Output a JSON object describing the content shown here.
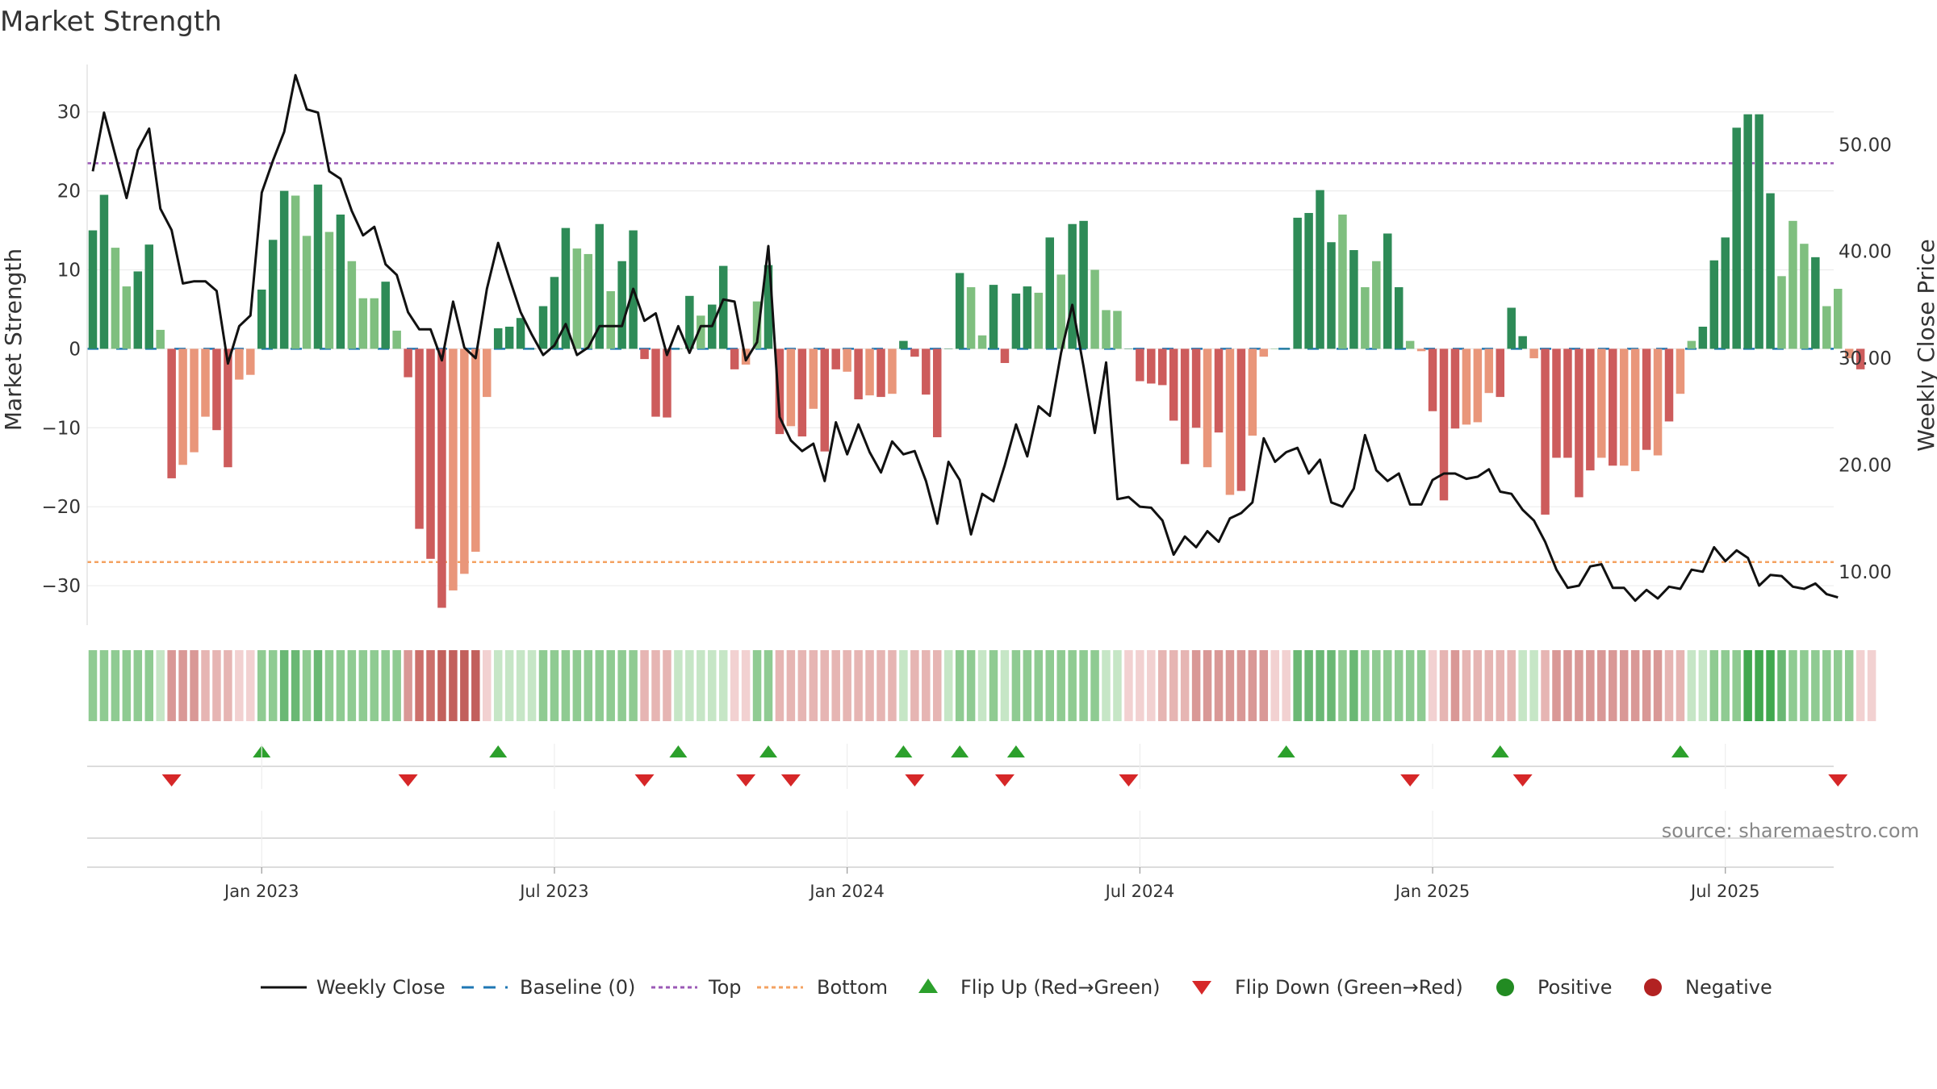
{
  "chart_data": {
    "type": "bar+line",
    "title": "Market Strength",
    "ylabel_left": "Market Strength",
    "ylabel_right": "Weekly Close Price",
    "ylim_left": [
      -35,
      36
    ],
    "ylim_right": [
      5,
      57.5
    ],
    "yticks_left": [
      30,
      20,
      10,
      0,
      -10,
      -20,
      -30
    ],
    "ytick_labels_left": [
      "30",
      "20",
      "10",
      "0",
      "−10",
      "−20",
      "−30"
    ],
    "yticks_right": [
      50,
      40,
      30,
      20,
      10
    ],
    "ytick_labels_right": [
      "50.00",
      "40.00",
      "30.00",
      "20.00",
      "10.00"
    ],
    "top_line": 23.5,
    "bottom_line": -27,
    "xticks": [
      "Jan 2023",
      "Jul 2023",
      "Jan 2024",
      "Jul 2024",
      "Jan 2025",
      "Jul 2025"
    ],
    "xtick_week_index": [
      15,
      41,
      67,
      93,
      119,
      145
    ],
    "strength": [
      15,
      19.5,
      12.8,
      7.9,
      9.8,
      13.2,
      2.4,
      -16.4,
      -14.7,
      -13.1,
      -8.6,
      -10.3,
      -15,
      -3.9,
      -3.3,
      7.5,
      13.8,
      20,
      19.4,
      14.3,
      20.8,
      14.8,
      17,
      11.1,
      6.4,
      6.4,
      8.5,
      2.3,
      -3.6,
      -22.8,
      -26.6,
      -32.8,
      -30.6,
      -28.5,
      -25.7,
      -6.1,
      2.6,
      2.8,
      3.9,
      0,
      5.4,
      9.1,
      15.3,
      12.7,
      12,
      15.8,
      7.3,
      11.1,
      15,
      -1.3,
      -8.6,
      -8.7,
      0,
      6.7,
      4.2,
      5.6,
      10.5,
      -2.6,
      -2,
      6,
      10.6,
      -10.8,
      -9.8,
      -11.1,
      -7.6,
      -13,
      -2.6,
      -2.9,
      -6.4,
      -5.9,
      -6.1,
      -5.7,
      1,
      -1,
      -5.8,
      -11.2,
      0,
      9.6,
      7.8,
      1.7,
      8.1,
      -1.8,
      7,
      7.9,
      7.1,
      14.1,
      9.4,
      15.8,
      16.2,
      10,
      4.9,
      4.8,
      0,
      -4.1,
      -4.4,
      -4.6,
      -9.1,
      -14.6,
      -10,
      -15,
      -10.6,
      -18.5,
      -18,
      -11,
      -1,
      0,
      0,
      16.6,
      17.2,
      20.1,
      13.5,
      17,
      12.5,
      7.8,
      11.1,
      14.6,
      7.8,
      1,
      -0.3,
      -7.9,
      -19.2,
      -10.1,
      -9.6,
      -9.3,
      -5.6,
      -6.1,
      5.2,
      1.6,
      -1.2,
      -21,
      -13.8,
      -13.8,
      -18.8,
      -15.4,
      -13.8,
      -14.8,
      -14.8,
      -15.5,
      -12.8,
      -13.5,
      -9.2,
      -5.7,
      1,
      2.8,
      11.2,
      14.1,
      28,
      29.7,
      29.7,
      19.7,
      9.2,
      16.2,
      13.3,
      11.6,
      5.4,
      7.6,
      -1.2,
      -2.6
    ],
    "strength_shade": [
      "d",
      "d",
      "l",
      "l",
      "d",
      "d",
      "l",
      "d",
      "l",
      "l",
      "l",
      "d",
      "d",
      "l",
      "l",
      "d",
      "d",
      "d",
      "l",
      "l",
      "d",
      "l",
      "d",
      "l",
      "l",
      "l",
      "d",
      "l",
      "d",
      "d",
      "d",
      "d",
      "l",
      "l",
      "l",
      "l",
      "d",
      "d",
      "d",
      "d",
      "d",
      "d",
      "d",
      "l",
      "l",
      "d",
      "l",
      "d",
      "d",
      "d",
      "d",
      "d",
      "d",
      "d",
      "l",
      "d",
      "d",
      "d",
      "l",
      "l",
      "d",
      "d",
      "l",
      "d",
      "l",
      "d",
      "d",
      "l",
      "d",
      "l",
      "d",
      "l",
      "d",
      "d",
      "d",
      "d",
      "d",
      "d",
      "l",
      "l",
      "d",
      "d",
      "d",
      "d",
      "l",
      "d",
      "l",
      "d",
      "d",
      "l",
      "l",
      "l",
      "d",
      "d",
      "d",
      "d",
      "d",
      "d",
      "d",
      "l",
      "d",
      "l",
      "d",
      "l",
      "l",
      "l",
      "d",
      "d",
      "d",
      "d",
      "d",
      "l",
      "d",
      "l",
      "l",
      "d",
      "d",
      "l",
      "l",
      "d",
      "d",
      "d",
      "l",
      "l",
      "l",
      "d",
      "d",
      "d",
      "l",
      "d",
      "d",
      "d",
      "d",
      "d",
      "l",
      "d",
      "l",
      "l",
      "d",
      "l",
      "d",
      "l",
      "l",
      "d",
      "d",
      "d",
      "d",
      "d",
      "d",
      "d",
      "l",
      "l",
      "l",
      "d",
      "l",
      "l",
      "l",
      "d",
      "d",
      "d"
    ],
    "weekly_close": [
      47.5,
      53,
      49,
      45,
      49.5,
      51.5,
      44,
      42,
      37,
      37.2,
      37.2,
      36.3,
      29.5,
      33,
      34,
      45.5,
      48.5,
      51.2,
      56.5,
      53.3,
      53,
      47.5,
      46.8,
      43.8,
      41.5,
      42.3,
      38.8,
      37.8,
      34.3,
      32.7,
      32.7,
      29.8,
      35.3,
      31,
      30,
      36.5,
      40.8,
      37.5,
      34.3,
      32.2,
      30.3,
      31.2,
      33.2,
      30.3,
      31,
      33,
      33,
      33,
      36.5,
      33.5,
      34.2,
      30.3,
      33,
      30.5,
      33,
      33,
      35.5,
      35.3,
      29.8,
      31.5,
      40.5,
      24.5,
      22.3,
      21.3,
      22,
      18.5,
      24,
      21,
      23.8,
      21.2,
      19.3,
      22.2,
      21,
      21.3,
      18.5,
      14.5,
      20.3,
      18.6,
      13.5,
      17.3,
      16.6,
      20,
      23.8,
      20.8,
      25.5,
      24.6,
      30.5,
      35,
      29.2,
      23,
      29.6,
      16.8,
      17,
      16.1,
      16,
      14.8,
      11.6,
      13.3,
      12.3,
      13.8,
      12.8,
      15,
      15.5,
      16.5,
      22.5,
      20.3,
      21.2,
      21.6,
      19.2,
      20.5,
      16.5,
      16.1,
      17.8,
      22.8,
      19.5,
      18.5,
      19.2,
      16.3,
      16.3,
      18.6,
      19.2,
      19.2,
      18.7,
      18.9,
      19.6,
      17.5,
      17.3,
      15.8,
      14.8,
      12.8,
      10.2,
      8.5,
      8.7,
      10.5,
      10.7,
      8.5,
      8.5,
      7.3,
      8.3,
      7.5,
      8.6,
      8.4,
      10.2,
      10.0,
      12.3,
      11.0,
      12.0,
      11.3,
      8.7,
      9.7,
      9.6,
      8.6,
      8.4,
      8.9,
      7.9,
      7.6
    ],
    "heat_strip": [
      2,
      2,
      2,
      2,
      2,
      2,
      1,
      -3,
      -3,
      -3,
      -2,
      -2,
      -2,
      -1,
      -1,
      2,
      2,
      3,
      3,
      2,
      3,
      2,
      2,
      2,
      2,
      2,
      2,
      2,
      -3,
      -4,
      -4,
      -5,
      -5,
      -5,
      -5,
      -1,
      1,
      1,
      1,
      1,
      2,
      2,
      2,
      2,
      2,
      2,
      2,
      2,
      2,
      -2,
      -2,
      -2,
      1,
      1,
      1,
      1,
      1,
      -1,
      -1,
      2,
      2,
      -2,
      -2,
      -2,
      -2,
      -2,
      -2,
      -2,
      -2,
      -2,
      -2,
      -2,
      1,
      -2,
      -2,
      -2,
      1,
      2,
      2,
      1,
      2,
      1,
      2,
      2,
      2,
      2,
      2,
      2,
      2,
      2,
      1,
      1,
      -1,
      -1,
      -1,
      -2,
      -2,
      -2,
      -3,
      -3,
      -3,
      -3,
      -3,
      -3,
      -3,
      -1,
      -1,
      3,
      3,
      3,
      3,
      2,
      3,
      2,
      2,
      2,
      2,
      2,
      2,
      -1,
      -2,
      -3,
      -2,
      -2,
      -2,
      -2,
      -2,
      1,
      1,
      -2,
      -3,
      -3,
      -3,
      -3,
      -3,
      -3,
      -3,
      -3,
      -3,
      -3,
      -2,
      -2,
      1,
      1,
      2,
      2,
      2,
      4,
      4,
      4,
      3,
      2,
      2,
      2,
      2,
      2,
      2,
      -1,
      -1
    ],
    "flip_up_weeks": [
      15,
      36,
      52,
      60,
      72,
      77,
      82,
      106,
      125,
      141
    ],
    "flip_down_weeks": [
      7,
      28,
      49,
      58,
      62,
      73,
      81,
      92,
      117,
      127,
      155
    ],
    "legend": [
      "Weekly Close",
      "Baseline (0)",
      "Top",
      "Bottom",
      "Flip Up (Red→Green)",
      "Flip Down (Green→Red)",
      "Positive",
      "Negative"
    ],
    "source": "source: sharemaestro.com"
  },
  "colors": {
    "pos_dark": "#2e8b57",
    "pos_light": "#7fbf7f",
    "neg_dark": "#cd5c5c",
    "neg_light": "#e9967a",
    "line": "#111111",
    "baseline": "#1f77b4",
    "top": "#9b59b6",
    "bottom": "#f4a261",
    "flip_up": "#2ca02c",
    "flip_down": "#d62728",
    "positive_marker": "#228b22",
    "negative_marker": "#b22222"
  }
}
